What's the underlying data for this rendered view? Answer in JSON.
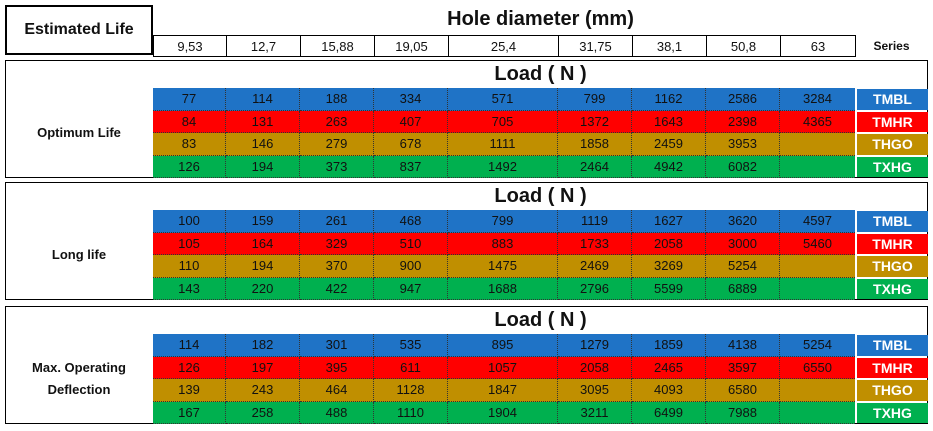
{
  "header": {
    "estimated_life": "Estimated Life",
    "hole_diameter": "Hole diameter (mm)",
    "diameters": [
      "9,53",
      "12,7",
      "15,88",
      "19,05",
      "25,4",
      "31,75",
      "38,1",
      "50,8",
      "63"
    ],
    "series": "Series"
  },
  "sections": [
    {
      "life": "Optimum Life",
      "load": "Load ( N )",
      "rows": [
        {
          "series": "TMBL",
          "values": [
            77,
            114,
            188,
            334,
            571,
            799,
            1162,
            2586,
            3284
          ]
        },
        {
          "series": "TMHR",
          "values": [
            84,
            131,
            263,
            407,
            705,
            1372,
            1643,
            2398,
            4365
          ]
        },
        {
          "series": "THGO",
          "values": [
            83,
            146,
            279,
            678,
            1111,
            1858,
            2459,
            3953,
            null
          ]
        },
        {
          "series": "TXHG",
          "values": [
            126,
            194,
            373,
            837,
            1492,
            2464,
            4942,
            6082,
            null
          ]
        }
      ]
    },
    {
      "life": "Long life",
      "load": "Load ( N )",
      "rows": [
        {
          "series": "TMBL",
          "values": [
            100,
            159,
            261,
            468,
            799,
            1119,
            1627,
            3620,
            4597
          ]
        },
        {
          "series": "TMHR",
          "values": [
            105,
            164,
            329,
            510,
            883,
            1733,
            2058,
            3000,
            5460
          ]
        },
        {
          "series": "THGO",
          "values": [
            110,
            194,
            370,
            900,
            1475,
            2469,
            3269,
            5254,
            null
          ]
        },
        {
          "series": "TXHG",
          "values": [
            143,
            220,
            422,
            947,
            1688,
            2796,
            5599,
            6889,
            null
          ]
        }
      ]
    },
    {
      "life": "Max. Operating Deflection",
      "load": "Load ( N )",
      "rows": [
        {
          "series": "TMBL",
          "values": [
            114,
            182,
            301,
            535,
            895,
            1279,
            1859,
            4138,
            5254
          ]
        },
        {
          "series": "TMHR",
          "values": [
            126,
            197,
            395,
            611,
            1057,
            2058,
            2465,
            3597,
            6550
          ]
        },
        {
          "series": "THGO",
          "values": [
            139,
            243,
            464,
            1128,
            1847,
            3095,
            4093,
            6580,
            null
          ]
        },
        {
          "series": "TXHG",
          "values": [
            167,
            258,
            488,
            1110,
            1904,
            3211,
            6499,
            7988,
            null
          ]
        }
      ]
    }
  ]
}
